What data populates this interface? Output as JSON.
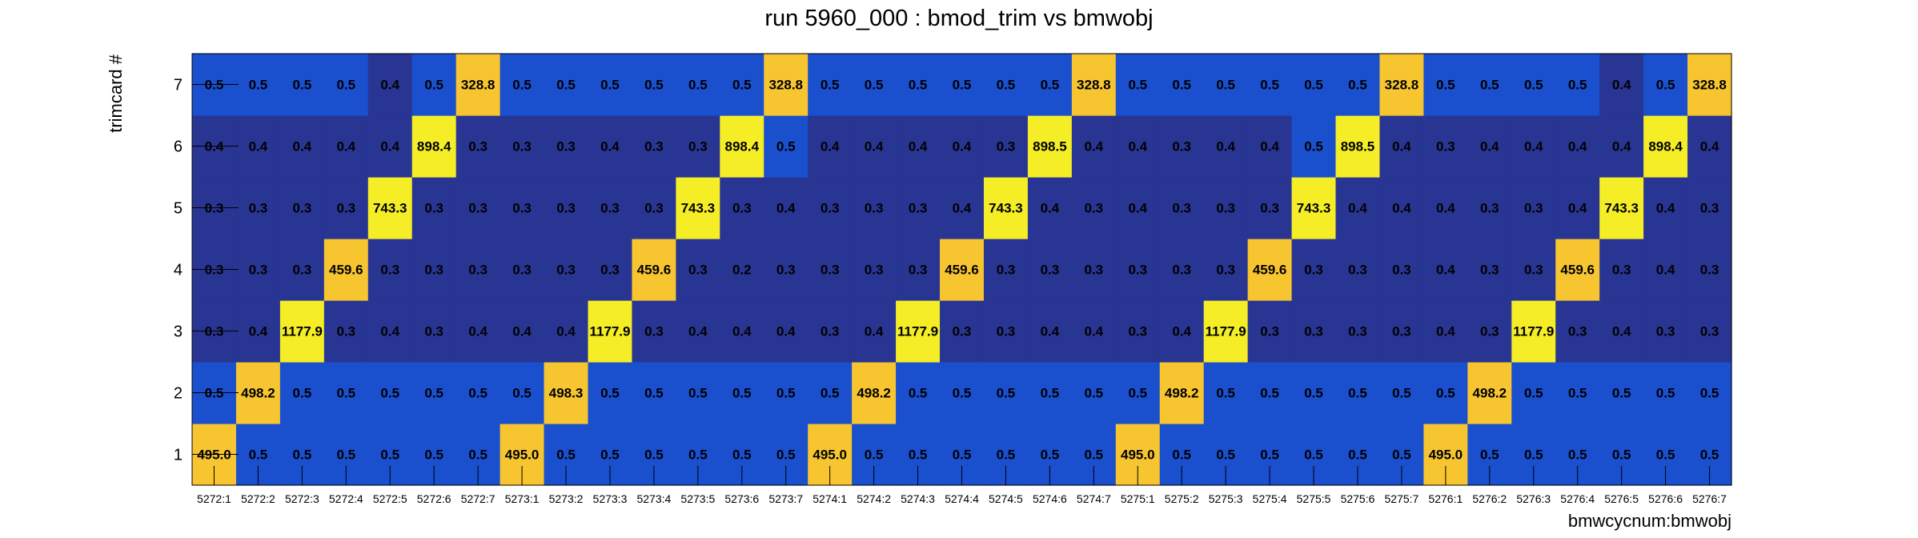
{
  "chart_data": {
    "type": "heatmap",
    "title": "run 5960_000 : bmod_trim vs bmwobj",
    "xlabel": "bmwcycnum:bmwobj",
    "ylabel": "trimcard #",
    "x_categories": [
      "5272:1",
      "5272:2",
      "5272:3",
      "5272:4",
      "5272:5",
      "5272:6",
      "5272:7",
      "5273:1",
      "5273:2",
      "5273:3",
      "5273:4",
      "5273:5",
      "5273:6",
      "5273:7",
      "5274:1",
      "5274:2",
      "5274:3",
      "5274:4",
      "5274:5",
      "5274:6",
      "5274:7",
      "5275:1",
      "5275:2",
      "5275:3",
      "5275:4",
      "5275:5",
      "5275:6",
      "5275:7",
      "5276:1",
      "5276:2",
      "5276:3",
      "5276:4",
      "5276:5",
      "5276:6",
      "5276:7"
    ],
    "y_categories": [
      "1",
      "2",
      "3",
      "4",
      "5",
      "6",
      "7"
    ],
    "values": [
      [
        "495.0",
        "0.5",
        "0.5",
        "0.5",
        "0.5",
        "0.5",
        "0.5",
        "495.0",
        "0.5",
        "0.5",
        "0.5",
        "0.5",
        "0.5",
        "0.5",
        "495.0",
        "0.5",
        "0.5",
        "0.5",
        "0.5",
        "0.5",
        "0.5",
        "495.0",
        "0.5",
        "0.5",
        "0.5",
        "0.5",
        "0.5",
        "0.5",
        "495.0",
        "0.5",
        "0.5",
        "0.5",
        "0.5",
        "0.5",
        "0.5"
      ],
      [
        "0.5",
        "498.2",
        "0.5",
        "0.5",
        "0.5",
        "0.5",
        "0.5",
        "0.5",
        "498.3",
        "0.5",
        "0.5",
        "0.5",
        "0.5",
        "0.5",
        "0.5",
        "498.2",
        "0.5",
        "0.5",
        "0.5",
        "0.5",
        "0.5",
        "0.5",
        "498.2",
        "0.5",
        "0.5",
        "0.5",
        "0.5",
        "0.5",
        "0.5",
        "498.2",
        "0.5",
        "0.5",
        "0.5",
        "0.5",
        "0.5"
      ],
      [
        "0.3",
        "0.4",
        "1177.9",
        "0.3",
        "0.4",
        "0.3",
        "0.4",
        "0.4",
        "0.4",
        "1177.9",
        "0.3",
        "0.4",
        "0.4",
        "0.4",
        "0.3",
        "0.4",
        "1177.9",
        "0.3",
        "0.3",
        "0.4",
        "0.4",
        "0.3",
        "0.4",
        "1177.9",
        "0.3",
        "0.3",
        "0.3",
        "0.3",
        "0.4",
        "0.3",
        "1177.9",
        "0.3",
        "0.4",
        "0.3",
        "0.3"
      ],
      [
        "0.3",
        "0.3",
        "0.3",
        "459.6",
        "0.3",
        "0.3",
        "0.3",
        "0.3",
        "0.3",
        "0.3",
        "459.6",
        "0.3",
        "0.2",
        "0.3",
        "0.3",
        "0.3",
        "0.3",
        "459.6",
        "0.3",
        "0.3",
        "0.3",
        "0.3",
        "0.3",
        "0.3",
        "459.6",
        "0.3",
        "0.3",
        "0.3",
        "0.4",
        "0.3",
        "0.3",
        "459.6",
        "0.3",
        "0.4",
        "0.3"
      ],
      [
        "0.3",
        "0.3",
        "0.3",
        "0.3",
        "743.3",
        "0.3",
        "0.3",
        "0.3",
        "0.3",
        "0.3",
        "0.3",
        "743.3",
        "0.3",
        "0.4",
        "0.3",
        "0.3",
        "0.3",
        "0.4",
        "743.3",
        "0.4",
        "0.3",
        "0.4",
        "0.3",
        "0.3",
        "0.3",
        "743.3",
        "0.4",
        "0.4",
        "0.4",
        "0.3",
        "0.3",
        "0.4",
        "743.3",
        "0.4",
        "0.3"
      ],
      [
        "0.4",
        "0.4",
        "0.4",
        "0.4",
        "0.4",
        "898.4",
        "0.3",
        "0.3",
        "0.3",
        "0.4",
        "0.3",
        "0.3",
        "898.4",
        "0.5",
        "0.4",
        "0.4",
        "0.4",
        "0.4",
        "0.3",
        "898.5",
        "0.4",
        "0.4",
        "0.3",
        "0.4",
        "0.4",
        "0.5",
        "898.5",
        "0.4",
        "0.3",
        "0.4",
        "0.4",
        "0.4",
        "0.4",
        "898.4",
        "0.4"
      ],
      [
        "0.5",
        "0.5",
        "0.5",
        "0.5",
        "0.4",
        "0.5",
        "328.8",
        "0.5",
        "0.5",
        "0.5",
        "0.5",
        "0.5",
        "0.5",
        "328.8",
        "0.5",
        "0.5",
        "0.5",
        "0.5",
        "0.5",
        "0.5",
        "328.8",
        "0.5",
        "0.5",
        "0.5",
        "0.5",
        "0.5",
        "0.5",
        "328.8",
        "0.5",
        "0.5",
        "0.5",
        "0.5",
        "0.4",
        "0.5",
        "328.8"
      ]
    ],
    "colors": {
      "background": "#ffffff",
      "very_low": "#283593",
      "low": "#1a4fce",
      "mid": "#f7c530",
      "high": "#f5ee26",
      "axis": "#000000"
    },
    "grid": false,
    "legend": "none"
  }
}
